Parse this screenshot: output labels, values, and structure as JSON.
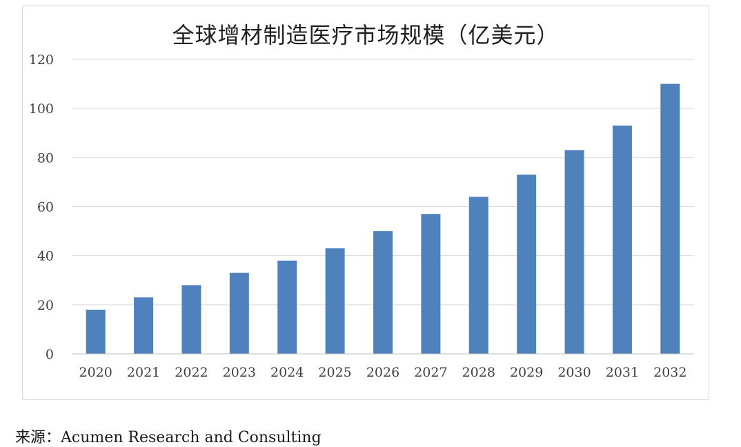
{
  "chart_data": {
    "type": "bar",
    "title": "全球增材制造医疗市场规模（亿美元）",
    "categories": [
      "2020",
      "2021",
      "2022",
      "2023",
      "2024",
      "2025",
      "2026",
      "2027",
      "2028",
      "2029",
      "2030",
      "2031",
      "2032"
    ],
    "values": [
      18,
      23,
      28,
      33,
      38,
      43,
      50,
      57,
      64,
      73,
      83,
      93,
      110
    ],
    "ylim": [
      0,
      120
    ],
    "yticks": [
      0,
      20,
      40,
      60,
      80,
      100,
      120
    ],
    "xlabel": "",
    "ylabel": "",
    "grid": true,
    "bar_color": "#4f81bd",
    "grid_color": "#d9d9d9"
  },
  "source": {
    "label": "来源：",
    "text": "Acumen Research and Consulting"
  }
}
